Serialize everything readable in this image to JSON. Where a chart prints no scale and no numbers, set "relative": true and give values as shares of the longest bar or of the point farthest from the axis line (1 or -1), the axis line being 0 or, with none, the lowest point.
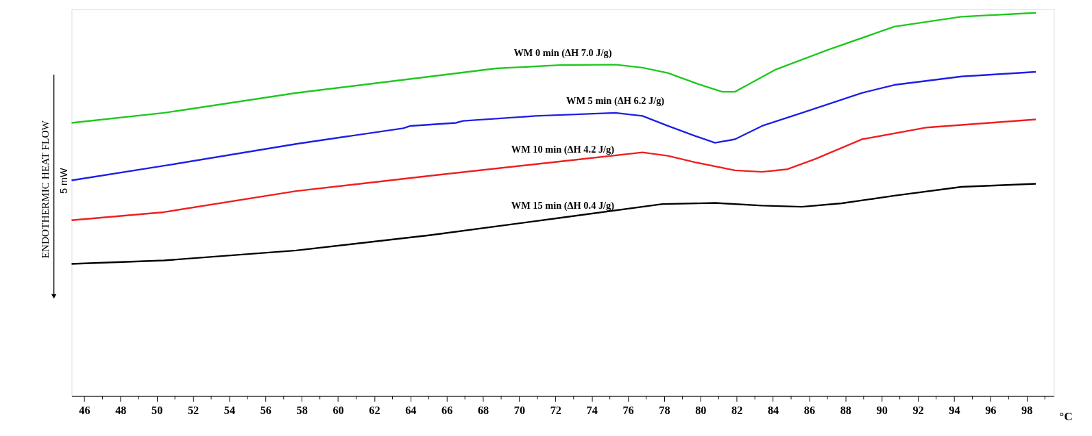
{
  "chart_data": {
    "type": "line",
    "relative": true,
    "xlabel": "°C",
    "ylabel": "ENDOTHERMIC  HEAT FLOW",
    "annotations": [
      "5 mW"
    ],
    "xlim": [
      45.3,
      99.5
    ],
    "xticks": [
      46,
      {
        "value": 47,
        "label": null
      },
      48,
      {
        "value": 49,
        "label": null
      },
      50,
      {
        "value": 51,
        "label": null
      },
      52,
      {
        "value": 53,
        "label": null
      },
      54,
      {
        "value": 55,
        "label": null
      },
      56,
      {
        "value": 57,
        "label": null
      },
      58,
      {
        "value": 59,
        "label": null
      },
      60,
      {
        "value": 61,
        "label": null
      },
      62,
      {
        "value": 63,
        "label": null
      },
      64,
      {
        "value": 65,
        "label": null
      },
      66,
      {
        "value": 67,
        "label": null
      },
      68,
      {
        "value": 69,
        "label": null
      },
      70,
      {
        "value": 71,
        "label": null
      },
      72,
      {
        "value": 73,
        "label": null
      },
      74,
      {
        "value": 75,
        "label": null
      },
      76,
      {
        "value": 77,
        "label": null
      },
      78,
      {
        "value": 79,
        "label": null
      },
      80,
      {
        "value": 81,
        "label": null
      },
      82,
      {
        "value": 83,
        "label": null
      },
      84,
      {
        "value": 85,
        "label": null
      },
      86,
      {
        "value": 87,
        "label": null
      },
      88,
      {
        "value": 89,
        "label": null
      },
      90,
      {
        "value": 91,
        "label": null
      },
      92,
      {
        "value": 93,
        "label": null
      },
      94,
      {
        "value": 95,
        "label": null
      },
      96,
      {
        "value": 97,
        "label": null
      },
      98,
      {
        "value": 99,
        "label": null
      }
    ],
    "grid": false,
    "legend": false,
    "marker": "none",
    "line_style": "solid",
    "series": [
      {
        "name": "WM 0 min (ΔH 7.0 J/g)",
        "color": "#1ec81e",
        "x": [
          45.3,
          50.4,
          57.7,
          65.1,
          68.7,
          72.4,
          75.3,
          76.8,
          78.2,
          79.7,
          81.2,
          81.9,
          82.6,
          84.1,
          87.0,
          90.7,
          94.4,
          98.5
        ],
        "values": [
          0.713,
          0.739,
          0.791,
          0.834,
          0.855,
          0.864,
          0.865,
          0.857,
          0.843,
          0.817,
          0.794,
          0.794,
          0.812,
          0.851,
          0.903,
          0.964,
          0.99,
          1.0
        ]
      },
      {
        "name": "WM 5 min (ΔH 6.2 J/g)",
        "color": "#1e1ee6",
        "x": [
          45.3,
          50.4,
          57.7,
          63.6,
          64.0,
          66.5,
          66.9,
          70.9,
          75.3,
          76.8,
          78.2,
          79.7,
          80.8,
          81.9,
          83.4,
          85.6,
          88.9,
          90.7,
          94.4,
          98.5
        ],
        "values": [
          0.563,
          0.601,
          0.658,
          0.699,
          0.705,
          0.713,
          0.718,
          0.731,
          0.739,
          0.731,
          0.705,
          0.679,
          0.661,
          0.67,
          0.705,
          0.739,
          0.791,
          0.812,
          0.834,
          0.846
        ]
      },
      {
        "name": "WM 10 min (ΔH 4.2 J/g)",
        "color": "#f01e1e",
        "x": [
          45.3,
          50.4,
          57.7,
          65.1,
          72.4,
          76.8,
          78.2,
          79.7,
          81.9,
          83.4,
          84.8,
          86.3,
          88.9,
          92.5,
          98.5
        ],
        "values": [
          0.459,
          0.48,
          0.535,
          0.575,
          0.613,
          0.636,
          0.627,
          0.61,
          0.589,
          0.585,
          0.592,
          0.618,
          0.67,
          0.701,
          0.722
        ]
      },
      {
        "name": "WM 15 min (ΔH 0.4 J/g)",
        "color": "#000000",
        "x": [
          45.3,
          50.4,
          57.7,
          65.1,
          72.4,
          77.9,
          80.8,
          83.4,
          85.6,
          87.8,
          90.7,
          94.4,
          98.5
        ],
        "values": [
          0.345,
          0.354,
          0.38,
          0.42,
          0.466,
          0.501,
          0.504,
          0.497,
          0.494,
          0.503,
          0.523,
          0.546,
          0.554
        ]
      }
    ]
  }
}
